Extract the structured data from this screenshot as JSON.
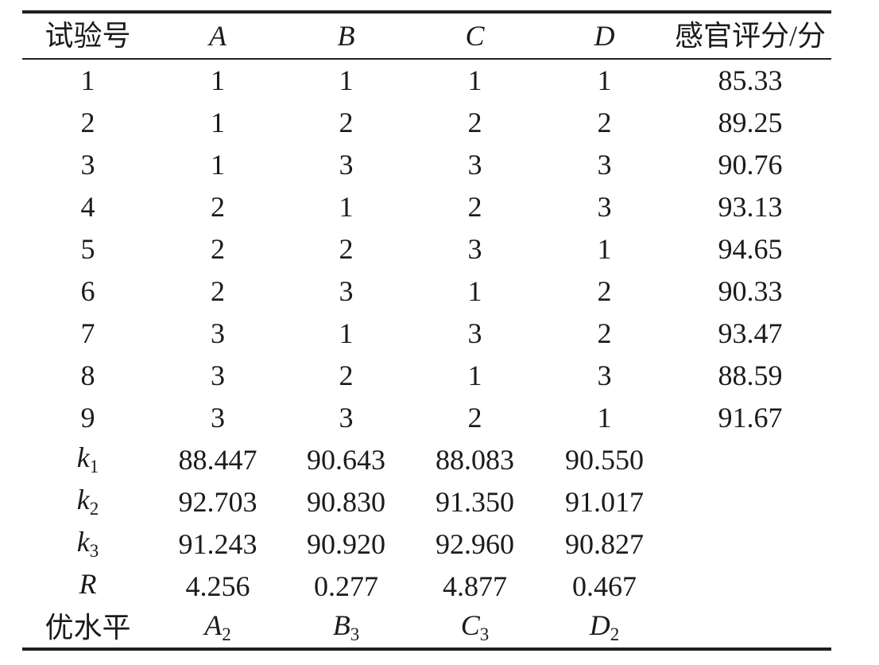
{
  "table": {
    "header": {
      "exp_no": "试验号",
      "a": "A",
      "b": "B",
      "c": "C",
      "d": "D",
      "score": "感官评分/分"
    },
    "rows": [
      {
        "no": "1",
        "a": "1",
        "b": "1",
        "c": "1",
        "d": "1",
        "score": "85.33"
      },
      {
        "no": "2",
        "a": "1",
        "b": "2",
        "c": "2",
        "d": "2",
        "score": "89.25"
      },
      {
        "no": "3",
        "a": "1",
        "b": "3",
        "c": "3",
        "d": "3",
        "score": "90.76"
      },
      {
        "no": "4",
        "a": "2",
        "b": "1",
        "c": "2",
        "d": "3",
        "score": "93.13"
      },
      {
        "no": "5",
        "a": "2",
        "b": "2",
        "c": "3",
        "d": "1",
        "score": "94.65"
      },
      {
        "no": "6",
        "a": "2",
        "b": "3",
        "c": "1",
        "d": "2",
        "score": "90.33"
      },
      {
        "no": "7",
        "a": "3",
        "b": "1",
        "c": "3",
        "d": "2",
        "score": "93.47"
      },
      {
        "no": "8",
        "a": "3",
        "b": "2",
        "c": "1",
        "d": "3",
        "score": "88.59"
      },
      {
        "no": "9",
        "a": "3",
        "b": "3",
        "c": "2",
        "d": "1",
        "score": "91.67"
      }
    ],
    "stats": [
      {
        "base": "k",
        "sub": "1",
        "a": "88.447",
        "b": "90.643",
        "c": "88.083",
        "d": "90.550"
      },
      {
        "base": "k",
        "sub": "2",
        "a": "92.703",
        "b": "90.830",
        "c": "91.350",
        "d": "91.017"
      },
      {
        "base": "k",
        "sub": "3",
        "a": "91.243",
        "b": "90.920",
        "c": "92.960",
        "d": "90.827"
      },
      {
        "base": "R",
        "sub": "",
        "a": "4.256",
        "b": "0.277",
        "c": "4.877",
        "d": "0.467"
      }
    ],
    "optimal": {
      "label": "优水平",
      "a_base": "A",
      "a_sub": "2",
      "b_base": "B",
      "b_sub": "3",
      "c_base": "C",
      "c_sub": "3",
      "d_base": "D",
      "d_sub": "2"
    }
  }
}
